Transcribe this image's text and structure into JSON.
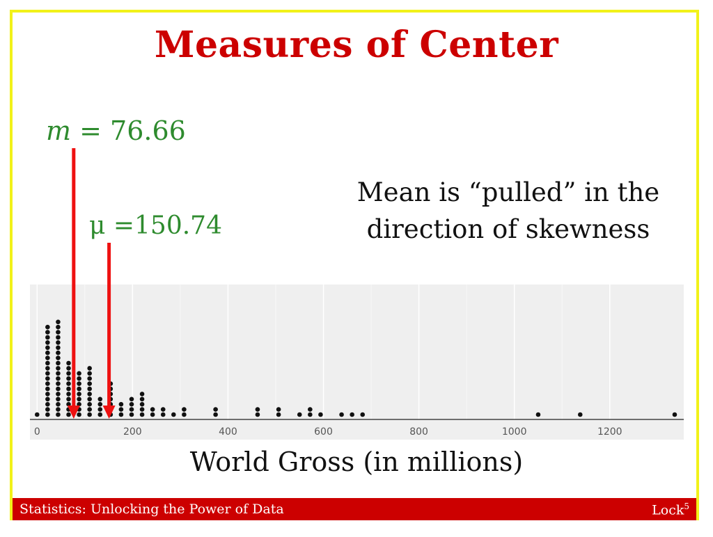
{
  "slide": {
    "title": "Measures of Center",
    "median_symbol": "m",
    "median_value": " = 76.66",
    "mean_label": "μ =150.74",
    "note_line1": "Mean is “pulled” in the",
    "note_line2": "direction of skewness",
    "xlabel": "World Gross (in millions)",
    "footer_left": "Statistics: Unlocking the Power of Data",
    "footer_right": "Lock",
    "footer_right_sup": "5",
    "colors": {
      "title": "#cc0000",
      "annotation": "#2e8b2e",
      "arrow": "#ee1111",
      "border": "#f2f21a",
      "footer": "#cc0000"
    }
  },
  "chart_data": {
    "type": "scatter",
    "subtype": "dot plot",
    "xlim": [
      -15,
      1355
    ],
    "x_ticks": [
      0,
      200,
      400,
      600,
      800,
      1000,
      1200
    ],
    "x_tick_labels": [
      "0",
      "200",
      "400",
      "600",
      "800",
      "1000",
      "1200"
    ],
    "grid": true,
    "stacks": [
      {
        "x": 0,
        "count": 1
      },
      {
        "x": 22,
        "count": 18
      },
      {
        "x": 44,
        "count": 19
      },
      {
        "x": 66,
        "count": 11
      },
      {
        "x": 88,
        "count": 9
      },
      {
        "x": 110,
        "count": 10
      },
      {
        "x": 132,
        "count": 4
      },
      {
        "x": 154,
        "count": 7
      },
      {
        "x": 176,
        "count": 3
      },
      {
        "x": 198,
        "count": 4
      },
      {
        "x": 220,
        "count": 5
      },
      {
        "x": 242,
        "count": 2
      },
      {
        "x": 264,
        "count": 2
      },
      {
        "x": 286,
        "count": 1
      },
      {
        "x": 308,
        "count": 2
      },
      {
        "x": 374,
        "count": 2
      },
      {
        "x": 462,
        "count": 2
      },
      {
        "x": 506,
        "count": 2
      },
      {
        "x": 550,
        "count": 1
      },
      {
        "x": 572,
        "count": 2
      },
      {
        "x": 594,
        "count": 1
      },
      {
        "x": 638,
        "count": 1
      },
      {
        "x": 660,
        "count": 1
      },
      {
        "x": 682,
        "count": 1
      },
      {
        "x": 1050,
        "count": 1
      },
      {
        "x": 1138,
        "count": 1
      },
      {
        "x": 1336,
        "count": 1
      }
    ],
    "markers": [
      {
        "name": "median",
        "x": 76.66
      },
      {
        "name": "mean",
        "x": 150.74
      }
    ]
  }
}
